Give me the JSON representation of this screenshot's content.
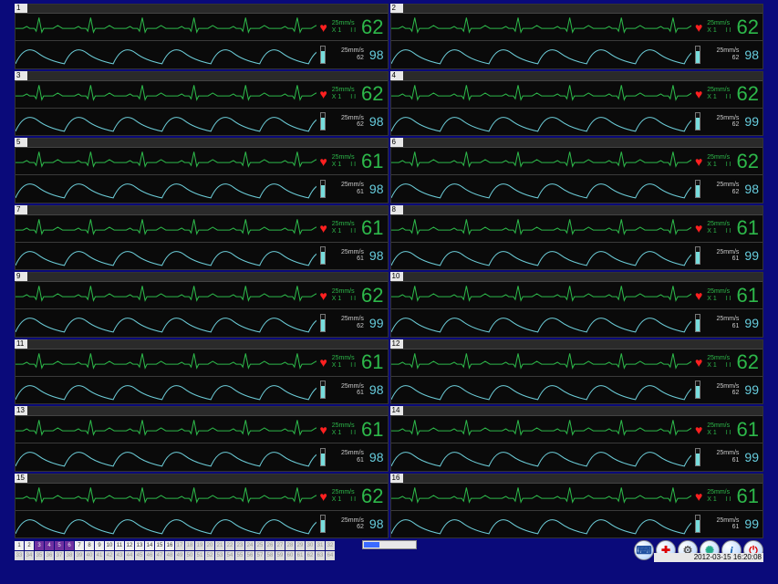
{
  "colors": {
    "page_bg": "#0a0a7a",
    "panel_bg": "#0a0a0a",
    "ecg_stroke": "#2db84a",
    "spo2_stroke": "#6ccdd8",
    "hr_text": "#2db84a",
    "spo2_text": "#6ccdd8",
    "label_text": "#cccccc",
    "heart": "#ff2020",
    "divider": "#3a3a3a",
    "pager_bg": "#f0f0f0",
    "pager_active": "#7030a0",
    "pager_dim": "#dcdcdc"
  },
  "waveforms": {
    "ecg_speed": "25mm/s",
    "ecg_gain": "X1",
    "ecg_lead": "II",
    "spo2_speed": "25mm/s"
  },
  "beds": [
    {
      "id": 1,
      "hr": 62,
      "spo2": 98,
      "pulse": 62
    },
    {
      "id": 2,
      "hr": 62,
      "spo2": 98,
      "pulse": 62
    },
    {
      "id": 3,
      "hr": 62,
      "spo2": 98,
      "pulse": 62
    },
    {
      "id": 4,
      "hr": 62,
      "spo2": 99,
      "pulse": 62
    },
    {
      "id": 5,
      "hr": 61,
      "spo2": 98,
      "pulse": 61
    },
    {
      "id": 6,
      "hr": 62,
      "spo2": 98,
      "pulse": 62
    },
    {
      "id": 7,
      "hr": 61,
      "spo2": 98,
      "pulse": 61
    },
    {
      "id": 8,
      "hr": 61,
      "spo2": 99,
      "pulse": 61
    },
    {
      "id": 9,
      "hr": 62,
      "spo2": 99,
      "pulse": 62
    },
    {
      "id": 10,
      "hr": 61,
      "spo2": 99,
      "pulse": 61
    },
    {
      "id": 11,
      "hr": 61,
      "spo2": 98,
      "pulse": 61
    },
    {
      "id": 12,
      "hr": 62,
      "spo2": 99,
      "pulse": 62
    },
    {
      "id": 13,
      "hr": 61,
      "spo2": 98,
      "pulse": 61
    },
    {
      "id": 14,
      "hr": 61,
      "spo2": 99,
      "pulse": 61
    },
    {
      "id": 15,
      "hr": 62,
      "spo2": 98,
      "pulse": 62
    },
    {
      "id": 16,
      "hr": 61,
      "spo2": 99,
      "pulse": 61
    }
  ],
  "pager": {
    "total": 64,
    "per_row": 32,
    "active": [
      3,
      4,
      5,
      6
    ],
    "dim_from": 17
  },
  "toolbar": {
    "buttons": [
      {
        "name": "screen-button",
        "glyph": "⌨",
        "cls": ""
      },
      {
        "name": "alarm-button",
        "glyph": "✚",
        "cls": "red-cross"
      },
      {
        "name": "settings-button",
        "glyph": "⚙",
        "cls": "settings"
      },
      {
        "name": "network-button",
        "glyph": "✺",
        "cls": "globe"
      },
      {
        "name": "info-button",
        "glyph": "i",
        "cls": "info-i"
      },
      {
        "name": "power-button",
        "glyph": "⏻",
        "cls": "power"
      }
    ]
  },
  "timestamp": "2012-03-15 16:20:08"
}
